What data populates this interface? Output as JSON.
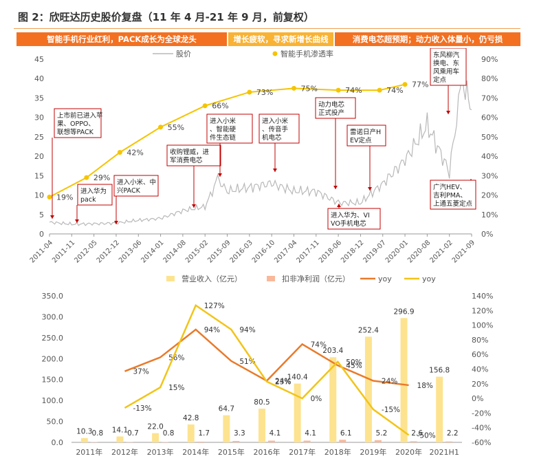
{
  "figure_title": "图 2：欣旺达历史股价复盘（11 年 4 月-21 年 9 月，前复权）",
  "phases": [
    {
      "label": "智能手机行业红利，PACK成长为全球龙头",
      "color": "#f37021"
    },
    {
      "label": "增长疲软，寻求新增长曲线",
      "color": "#f9b233"
    },
    {
      "label": "消费电芯超预期；动力收入体量小，仍亏损",
      "color": "#f37021"
    }
  ],
  "chart_data": [
    {
      "type": "line",
      "legend": [
        "股价",
        "智能手机渗透率"
      ],
      "x_ticks": [
        "2011-04",
        "2011-11",
        "2012-05",
        "2012-12",
        "2013-06",
        "2014-01",
        "2014-08",
        "2015-02",
        "2015-09",
        "2016-03",
        "2016-10",
        "2017-04",
        "2017-11",
        "2018-06",
        "2018-12",
        "2019-07",
        "2020-01",
        "2020-08",
        "2021-02",
        "2021-09"
      ],
      "y_left_ticks": [
        "0",
        "5",
        "10",
        "15",
        "20",
        "25",
        "30",
        "35",
        "40",
        "45"
      ],
      "y_right_ticks": [
        "0%",
        "10%",
        "20%",
        "30%",
        "40%",
        "50%",
        "60%",
        "70%",
        "80%",
        "90%"
      ],
      "ylim_left": [
        0,
        45
      ],
      "ylim_right": [
        0,
        90
      ],
      "series": [
        {
          "name": "股价",
          "color": "#b8b8b8",
          "x": [
            "2011-04",
            "2011-11",
            "2012-05",
            "2012-12",
            "2013-06",
            "2014-01",
            "2014-08",
            "2015-02",
            "2015-06",
            "2015-09",
            "2016-03",
            "2016-10",
            "2017-04",
            "2017-11",
            "2018-06",
            "2018-12",
            "2019-07",
            "2020-01",
            "2020-08",
            "2021-02",
            "2021-06",
            "2021-09"
          ],
          "values": [
            3,
            2.5,
            2.6,
            2.8,
            3.5,
            4,
            6,
            7,
            14,
            11,
            12,
            13,
            11,
            11,
            8,
            8,
            13,
            19,
            28,
            16,
            40,
            32
          ]
        },
        {
          "name": "智能手机渗透率",
          "color": "#f5c400",
          "x": [
            "2011-04",
            "2012-03",
            "2013-01",
            "2014-01",
            "2015-02",
            "2016-03",
            "2017-04",
            "2018-06",
            "2019-06",
            "2020-01"
          ],
          "values": [
            19,
            29,
            42,
            55,
            66,
            73,
            75,
            74,
            74,
            77
          ],
          "labels": [
            "19%",
            "29%",
            "42%",
            "55%",
            "66%",
            "73%",
            "75%",
            "74%",
            "74%",
            "77%"
          ]
        }
      ],
      "annotations": [
        "上市前已进入苹果、OPPO、联想等PACK",
        "进入华为pack",
        "进入小米、中兴PACK",
        "收购锂威，进军消费电芯",
        "进入小米、智能硬件生态链",
        "进入小米、传音手机电芯",
        "动力电芯正式投产",
        "雷诺日产HEV定点",
        "进入华为、VIVO手机电芯",
        "东风柳汽换电、东风乘用车定点",
        "广汽HEV、吉利PMA、上通五菱定点"
      ]
    },
    {
      "type": "bar",
      "legend": [
        "营业收入（亿元）",
        "扣非净利润（亿元）",
        "yoy",
        "yoy"
      ],
      "categories": [
        "2011年",
        "2012年",
        "2013年",
        "2014年",
        "2015年",
        "2016年",
        "2017年",
        "2018年",
        "2019年",
        "2020年",
        "2021H1"
      ],
      "y_left_ticks": [
        "0.0",
        "50.0",
        "100.0",
        "150.0",
        "200.0",
        "250.0",
        "300.0",
        "350.0"
      ],
      "y_right_ticks": [
        "-60%",
        "-40%",
        "-20%",
        "0%",
        "20%",
        "40%",
        "60%",
        "80%",
        "100%",
        "120%",
        "140%"
      ],
      "ylim_left": [
        0,
        350
      ],
      "ylim_right": [
        -60,
        140
      ],
      "series": [
        {
          "name": "营业收入（亿元）",
          "color": "#fde38f",
          "values": [
            10.3,
            14.1,
            22.0,
            42.8,
            64.7,
            80.5,
            140.4,
            203.4,
            252.4,
            296.9,
            156.8
          ],
          "labels": [
            "10.3",
            "14.1",
            "22.0",
            "42.8",
            "64.7",
            "80.5",
            "140.4",
            "203.4",
            "252.4",
            "296.9",
            "156.8"
          ]
        },
        {
          "name": "扣非净利润（亿元）",
          "color": "#f9b89a",
          "values": [
            0.8,
            0.7,
            0.8,
            1.7,
            3.3,
            4.1,
            4.1,
            6.1,
            5.2,
            2.6,
            2.2
          ],
          "labels": [
            "0.8",
            "0.7",
            "0.8",
            "1.7",
            "3.3",
            "4.1",
            "4.1",
            "6.1",
            "5.2",
            "2.6",
            "2.2"
          ]
        },
        {
          "name": "yoy",
          "color": "#e97a2a",
          "values": [
            null,
            37,
            56,
            94,
            51,
            24,
            74,
            45,
            24,
            18,
            null
          ],
          "labels": [
            "",
            "37%",
            "56%",
            "94%",
            "51%",
            "24%",
            "74%",
            "45%",
            "24%",
            "18%",
            ""
          ]
        },
        {
          "name": "yoy",
          "color": "#f2c418",
          "values": [
            null,
            -13,
            15,
            127,
            94,
            23,
            0,
            50,
            -15,
            -50,
            null
          ],
          "labels": [
            "",
            "-13%",
            "15%",
            "127%",
            "94%",
            "23%",
            "0%",
            "50%",
            "-15%",
            "-50%",
            ""
          ]
        }
      ]
    }
  ]
}
